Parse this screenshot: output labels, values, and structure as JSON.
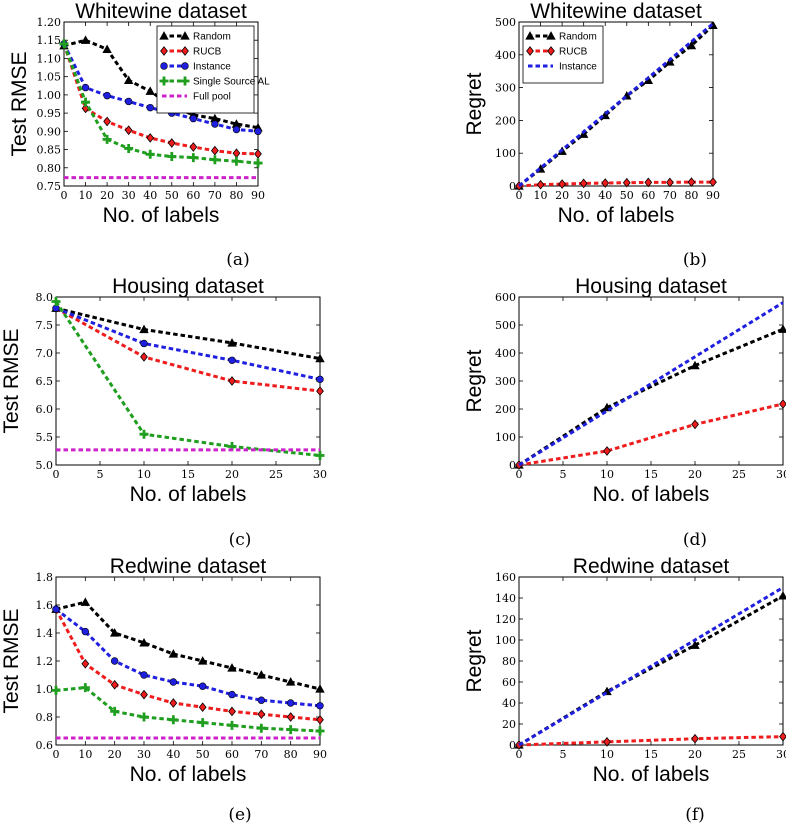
{
  "colors": {
    "Random": "#000000",
    "RUCB": "#ee1c1c",
    "Instance": "#1f1fe0",
    "Single Source AL": "#1f9e1f",
    "Full pool": "#cc22cc"
  },
  "chart_data": [
    {
      "id": "a",
      "type": "line",
      "title": "Whitewine dataset",
      "xlabel": "No. of labels",
      "ylabel": "Test RMSE",
      "caption": "(a)",
      "xlim": [
        0,
        90
      ],
      "ylim": [
        0.75,
        1.2
      ],
      "xticks": [
        0,
        10,
        20,
        30,
        40,
        50,
        60,
        70,
        80,
        90
      ],
      "yticks": [
        0.75,
        0.8,
        0.85,
        0.9,
        0.95,
        1.0,
        1.05,
        1.1,
        1.15,
        1.2
      ],
      "ytick_decimals": 2,
      "legend": "top-right",
      "series": [
        {
          "name": "Random",
          "marker": "triangle",
          "x": [
            0,
            10,
            20,
            30,
            40,
            50,
            60,
            70,
            80,
            90
          ],
          "y": [
            1.135,
            1.15,
            1.125,
            1.04,
            1.01,
            0.97,
            0.945,
            0.935,
            0.92,
            0.91
          ]
        },
        {
          "name": "RUCB",
          "marker": "diamond",
          "x": [
            0,
            10,
            20,
            30,
            40,
            50,
            60,
            70,
            80,
            90
          ],
          "y": [
            1.14,
            0.963,
            0.927,
            0.903,
            0.882,
            0.868,
            0.857,
            0.847,
            0.84,
            0.838
          ]
        },
        {
          "name": "Instance",
          "marker": "circle",
          "x": [
            0,
            10,
            20,
            30,
            40,
            50,
            60,
            70,
            80,
            90
          ],
          "y": [
            1.14,
            1.02,
            0.998,
            0.982,
            0.965,
            0.95,
            0.935,
            0.92,
            0.905,
            0.9
          ]
        },
        {
          "name": "Single Source AL",
          "marker": "plus",
          "x": [
            0,
            10,
            20,
            30,
            40,
            50,
            60,
            70,
            80,
            90
          ],
          "y": [
            1.14,
            0.98,
            0.878,
            0.853,
            0.837,
            0.831,
            0.828,
            0.822,
            0.818,
            0.813
          ]
        },
        {
          "name": "Full pool",
          "marker": "none",
          "x": [
            0,
            90
          ],
          "y": [
            0.773,
            0.773
          ]
        }
      ]
    },
    {
      "id": "b",
      "type": "line",
      "title": "Whitewine dataset",
      "xlabel": "No. of labels",
      "ylabel": "Regret",
      "caption": "(b)",
      "xlim": [
        0,
        90
      ],
      "ylim": [
        0,
        500
      ],
      "xticks": [
        0,
        10,
        20,
        30,
        40,
        50,
        60,
        70,
        80,
        90
      ],
      "yticks": [
        0,
        100,
        200,
        300,
        400,
        500
      ],
      "ytick_decimals": 0,
      "legend": "top-left",
      "series": [
        {
          "name": "Random",
          "marker": "triangle",
          "x": [
            0,
            10,
            20,
            30,
            40,
            50,
            60,
            70,
            80,
            90
          ],
          "y": [
            0,
            52,
            106,
            158,
            215,
            275,
            322,
            378,
            428,
            490
          ]
        },
        {
          "name": "RUCB",
          "marker": "diamond",
          "x": [
            0,
            10,
            20,
            30,
            40,
            50,
            60,
            70,
            80,
            90
          ],
          "y": [
            0,
            4,
            6,
            8,
            9,
            10,
            11,
            11,
            12,
            12
          ]
        },
        {
          "name": "Instance",
          "marker": "none",
          "x": [
            0,
            90
          ],
          "y": [
            0,
            495
          ]
        }
      ]
    },
    {
      "id": "c",
      "type": "line",
      "title": "Housing dataset",
      "xlabel": "No. of labels",
      "ylabel": "Test RMSE",
      "caption": "(c)",
      "xlim": [
        0,
        30
      ],
      "ylim": [
        5.0,
        8.0
      ],
      "xticks": [
        0,
        5,
        10,
        15,
        20,
        25,
        30
      ],
      "yticks": [
        5.0,
        5.5,
        6.0,
        6.5,
        7.0,
        7.5,
        8.0
      ],
      "ytick_decimals": 1,
      "legend": "none",
      "series": [
        {
          "name": "Random",
          "marker": "triangle",
          "x": [
            0,
            10,
            20,
            30
          ],
          "y": [
            7.8,
            7.42,
            7.18,
            6.9
          ]
        },
        {
          "name": "RUCB",
          "marker": "diamond",
          "x": [
            0,
            10,
            20,
            30
          ],
          "y": [
            7.8,
            6.93,
            6.5,
            6.32
          ]
        },
        {
          "name": "Instance",
          "marker": "circle",
          "x": [
            0,
            10,
            20,
            30
          ],
          "y": [
            7.8,
            7.17,
            6.87,
            6.53
          ]
        },
        {
          "name": "Single Source AL",
          "marker": "plus",
          "x": [
            0,
            10,
            20,
            30
          ],
          "y": [
            7.92,
            5.55,
            5.33,
            5.17
          ]
        },
        {
          "name": "Full pool",
          "marker": "none",
          "x": [
            0,
            30
          ],
          "y": [
            5.27,
            5.27
          ]
        }
      ]
    },
    {
      "id": "d",
      "type": "line",
      "title": "Housing dataset",
      "xlabel": "No. of labels",
      "ylabel": "Regret",
      "caption": "(d)",
      "xlim": [
        0,
        30
      ],
      "ylim": [
        0,
        600
      ],
      "xticks": [
        0,
        5,
        10,
        15,
        20,
        25,
        30
      ],
      "yticks": [
        0,
        100,
        200,
        300,
        400,
        500,
        600
      ],
      "ytick_decimals": 0,
      "legend": "none",
      "series": [
        {
          "name": "Random",
          "marker": "triangle",
          "x": [
            0,
            10,
            20,
            30
          ],
          "y": [
            0,
            205,
            355,
            485
          ]
        },
        {
          "name": "RUCB",
          "marker": "diamond",
          "x": [
            0,
            10,
            20,
            30
          ],
          "y": [
            0,
            50,
            145,
            218
          ]
        },
        {
          "name": "Instance",
          "marker": "none",
          "x": [
            0,
            30
          ],
          "y": [
            0,
            580
          ]
        }
      ]
    },
    {
      "id": "e",
      "type": "line",
      "title": "Redwine dataset",
      "xlabel": "No. of labels",
      "ylabel": "Test RMSE",
      "caption": "(e)",
      "xlim": [
        0,
        90
      ],
      "ylim": [
        0.6,
        1.8
      ],
      "xticks": [
        0,
        10,
        20,
        30,
        40,
        50,
        60,
        70,
        80,
        90
      ],
      "yticks": [
        0.6,
        0.8,
        1.0,
        1.2,
        1.4,
        1.6,
        1.8
      ],
      "ytick_decimals": 1,
      "legend": "none",
      "series": [
        {
          "name": "Random",
          "marker": "triangle",
          "x": [
            0,
            10,
            20,
            30,
            40,
            50,
            60,
            70,
            80,
            90
          ],
          "y": [
            1.57,
            1.62,
            1.4,
            1.33,
            1.25,
            1.2,
            1.15,
            1.1,
            1.05,
            1.0
          ]
        },
        {
          "name": "RUCB",
          "marker": "diamond",
          "x": [
            0,
            10,
            20,
            30,
            40,
            50,
            60,
            70,
            80,
            90
          ],
          "y": [
            1.57,
            1.18,
            1.03,
            0.96,
            0.9,
            0.87,
            0.84,
            0.82,
            0.8,
            0.78
          ]
        },
        {
          "name": "Instance",
          "marker": "circle",
          "x": [
            0,
            10,
            20,
            30,
            40,
            50,
            60,
            70,
            80,
            90
          ],
          "y": [
            1.57,
            1.41,
            1.2,
            1.1,
            1.05,
            1.02,
            0.96,
            0.92,
            0.9,
            0.88
          ]
        },
        {
          "name": "Single Source AL",
          "marker": "plus",
          "x": [
            0,
            10,
            20,
            30,
            40,
            50,
            60,
            70,
            80,
            90
          ],
          "y": [
            0.99,
            1.01,
            0.84,
            0.8,
            0.78,
            0.76,
            0.74,
            0.72,
            0.71,
            0.7
          ]
        },
        {
          "name": "Full pool",
          "marker": "none",
          "x": [
            0,
            90
          ],
          "y": [
            0.65,
            0.65
          ]
        }
      ]
    },
    {
      "id": "f",
      "type": "line",
      "title": "Redwine dataset",
      "xlabel": "No. of labels",
      "ylabel": "Regret",
      "caption": "(f)",
      "xlim": [
        0,
        30
      ],
      "ylim": [
        0,
        160
      ],
      "xticks": [
        0,
        5,
        10,
        15,
        20,
        25,
        30
      ],
      "yticks": [
        0,
        20,
        40,
        60,
        80,
        100,
        120,
        140,
        160
      ],
      "ytick_decimals": 0,
      "legend": "none",
      "series": [
        {
          "name": "Random",
          "marker": "triangle",
          "x": [
            0,
            10,
            20,
            30
          ],
          "y": [
            0,
            51,
            95,
            142
          ]
        },
        {
          "name": "RUCB",
          "marker": "diamond",
          "x": [
            0,
            10,
            20,
            30
          ],
          "y": [
            0,
            3,
            6,
            8
          ]
        },
        {
          "name": "Instance",
          "marker": "none",
          "x": [
            0,
            30
          ],
          "y": [
            0,
            150
          ]
        }
      ]
    }
  ]
}
